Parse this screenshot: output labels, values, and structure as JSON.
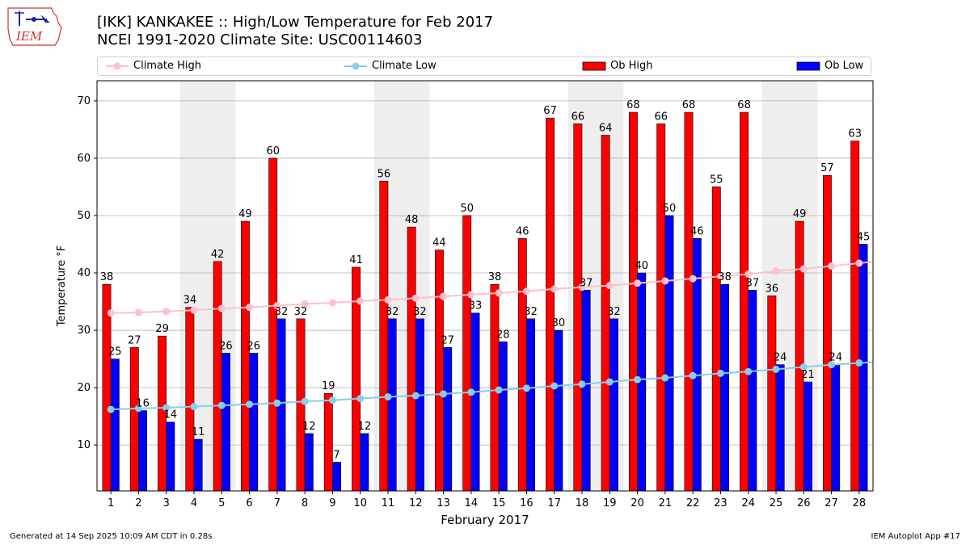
{
  "header": {
    "title_line1": "[IKK] KANKAKEE :: High/Low Temperature for Feb 2017",
    "title_line2": "NCEI 1991-2020 Climate Site: USC00114603",
    "logo_text": "IEM"
  },
  "legend": {
    "climate_high": "Climate High",
    "climate_low": "Climate Low",
    "ob_high": "Ob High",
    "ob_low": "Ob Low"
  },
  "colors": {
    "climate_high": "#ffc0cb",
    "climate_low": "#87ceeb",
    "ob_high": "#ff0000",
    "ob_low": "#0000ff",
    "weekend_shade": "#eeeeee",
    "grid": "#b0b0b0"
  },
  "chart_data": {
    "type": "bar",
    "xlabel": "February 2017",
    "ylabel": "Temperature °F",
    "ylim": [
      2,
      73.5
    ],
    "yticks": [
      10,
      20,
      30,
      40,
      50,
      60,
      70
    ],
    "grid": "horizontal",
    "legend_position": "top",
    "categories": [
      "1",
      "2",
      "3",
      "4",
      "5",
      "6",
      "7",
      "8",
      "9",
      "10",
      "11",
      "12",
      "13",
      "14",
      "15",
      "16",
      "17",
      "18",
      "19",
      "20",
      "21",
      "22",
      "23",
      "24",
      "25",
      "26",
      "27",
      "28"
    ],
    "shaded_days": [
      "4",
      "5",
      "11",
      "12",
      "18",
      "19",
      "25",
      "26"
    ],
    "series": [
      {
        "name": "Ob High",
        "kind": "bar",
        "values": [
          38,
          27,
          29,
          34,
          42,
          49,
          60,
          32,
          19,
          41,
          56,
          48,
          44,
          50,
          38,
          46,
          67,
          66,
          64,
          68,
          66,
          68,
          55,
          68,
          36,
          49,
          57,
          63
        ]
      },
      {
        "name": "Ob Low",
        "kind": "bar",
        "values": [
          25,
          16,
          14,
          11,
          26,
          26,
          32,
          12,
          7,
          12,
          32,
          32,
          27,
          33,
          28,
          32,
          30,
          37,
          32,
          40,
          50,
          46,
          38,
          37,
          24,
          21,
          24,
          45
        ]
      },
      {
        "name": "Climate High",
        "kind": "line",
        "values": [
          33.0,
          33.1,
          33.3,
          33.5,
          33.8,
          34.0,
          34.3,
          34.6,
          34.8,
          35.1,
          35.3,
          35.6,
          35.9,
          36.2,
          36.5,
          36.8,
          37.2,
          37.5,
          37.8,
          38.2,
          38.6,
          39.0,
          39.4,
          39.8,
          40.3,
          40.7,
          41.2,
          41.7
        ]
      },
      {
        "name": "Climate Low",
        "kind": "line",
        "values": [
          16.2,
          16.4,
          16.5,
          16.7,
          16.9,
          17.1,
          17.3,
          17.6,
          17.8,
          18.1,
          18.4,
          18.6,
          18.9,
          19.2,
          19.6,
          19.9,
          20.3,
          20.6,
          21.0,
          21.4,
          21.7,
          22.1,
          22.5,
          22.8,
          23.2,
          23.6,
          24.0,
          24.3
        ]
      }
    ]
  },
  "footer": {
    "generated": "Generated at 14 Sep 2025 10:09 AM CDT in 0.28s",
    "app": "IEM Autoplot App #17"
  }
}
